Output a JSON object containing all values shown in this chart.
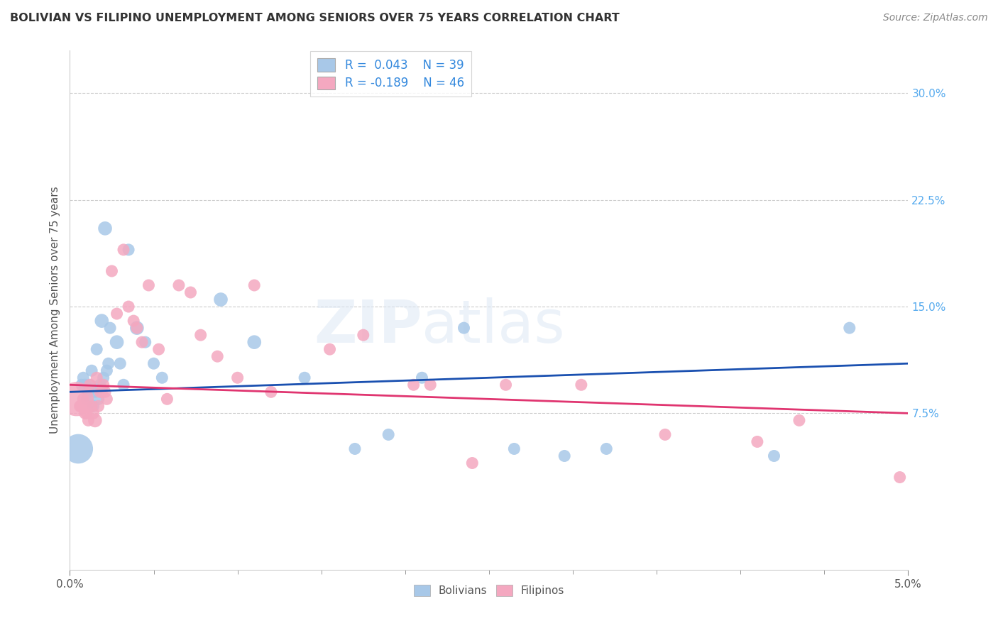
{
  "title": "BOLIVIAN VS FILIPINO UNEMPLOYMENT AMONG SENIORS OVER 75 YEARS CORRELATION CHART",
  "source": "Source: ZipAtlas.com",
  "ylabel": "Unemployment Among Seniors over 75 years",
  "xlim": [
    0.0,
    5.0
  ],
  "ylim": [
    -3.5,
    33.0
  ],
  "bolivian_color": "#a8c8e8",
  "filipino_color": "#f4a8c0",
  "bolivian_line_color": "#1a50b0",
  "filipino_line_color": "#e03570",
  "legend_R_bolivian": "0.043",
  "legend_N_bolivian": "39",
  "legend_R_filipino": "-0.189",
  "legend_N_filipino": "46",
  "bolivian_x": [
    0.05,
    0.07,
    0.08,
    0.09,
    0.1,
    0.11,
    0.12,
    0.13,
    0.14,
    0.15,
    0.16,
    0.17,
    0.18,
    0.19,
    0.2,
    0.21,
    0.22,
    0.23,
    0.24,
    0.28,
    0.3,
    0.32,
    0.35,
    0.4,
    0.45,
    0.5,
    0.55,
    0.9,
    1.1,
    1.4,
    1.7,
    1.9,
    2.1,
    2.35,
    2.65,
    2.95,
    3.2,
    4.2,
    4.65
  ],
  "bolivian_y": [
    5.0,
    9.5,
    10.0,
    9.5,
    8.5,
    9.0,
    9.5,
    10.5,
    8.0,
    9.0,
    12.0,
    8.5,
    9.5,
    14.0,
    10.0,
    20.5,
    10.5,
    11.0,
    13.5,
    12.5,
    11.0,
    9.5,
    19.0,
    13.5,
    12.5,
    11.0,
    10.0,
    15.5,
    12.5,
    10.0,
    5.0,
    6.0,
    10.0,
    13.5,
    5.0,
    4.5,
    5.0,
    4.5,
    13.5
  ],
  "bolivian_size": [
    900,
    150,
    150,
    150,
    150,
    150,
    150,
    150,
    150,
    150,
    150,
    150,
    150,
    200,
    150,
    200,
    150,
    150,
    150,
    200,
    150,
    150,
    150,
    200,
    150,
    150,
    150,
    200,
    200,
    150,
    150,
    150,
    150,
    150,
    150,
    150,
    150,
    150,
    150
  ],
  "filipino_x": [
    0.04,
    0.06,
    0.07,
    0.08,
    0.09,
    0.1,
    0.11,
    0.12,
    0.13,
    0.14,
    0.15,
    0.16,
    0.17,
    0.18,
    0.19,
    0.2,
    0.21,
    0.22,
    0.25,
    0.28,
    0.32,
    0.35,
    0.38,
    0.4,
    0.43,
    0.47,
    0.53,
    0.58,
    0.65,
    0.72,
    0.78,
    0.88,
    1.0,
    1.1,
    1.2,
    1.55,
    1.75,
    2.05,
    2.15,
    2.4,
    2.6,
    3.05,
    3.55,
    4.1,
    4.35,
    4.95
  ],
  "filipino_y": [
    8.5,
    8.0,
    8.0,
    8.5,
    7.5,
    7.5,
    7.0,
    9.5,
    8.0,
    7.5,
    7.0,
    10.0,
    8.0,
    9.0,
    9.0,
    9.5,
    9.0,
    8.5,
    17.5,
    14.5,
    19.0,
    15.0,
    14.0,
    13.5,
    12.5,
    16.5,
    12.0,
    8.5,
    16.5,
    16.0,
    13.0,
    11.5,
    10.0,
    16.5,
    9.0,
    12.0,
    13.0,
    9.5,
    9.5,
    4.0,
    9.5,
    9.5,
    6.0,
    5.5,
    7.0,
    3.0
  ],
  "filipino_size": [
    1200,
    150,
    150,
    150,
    150,
    150,
    150,
    150,
    150,
    150,
    200,
    150,
    150,
    150,
    150,
    150,
    150,
    150,
    150,
    150,
    150,
    150,
    150,
    150,
    150,
    150,
    150,
    150,
    150,
    150,
    150,
    150,
    150,
    150,
    150,
    150,
    150,
    150,
    150,
    150,
    150,
    150,
    150,
    150,
    150,
    150
  ]
}
